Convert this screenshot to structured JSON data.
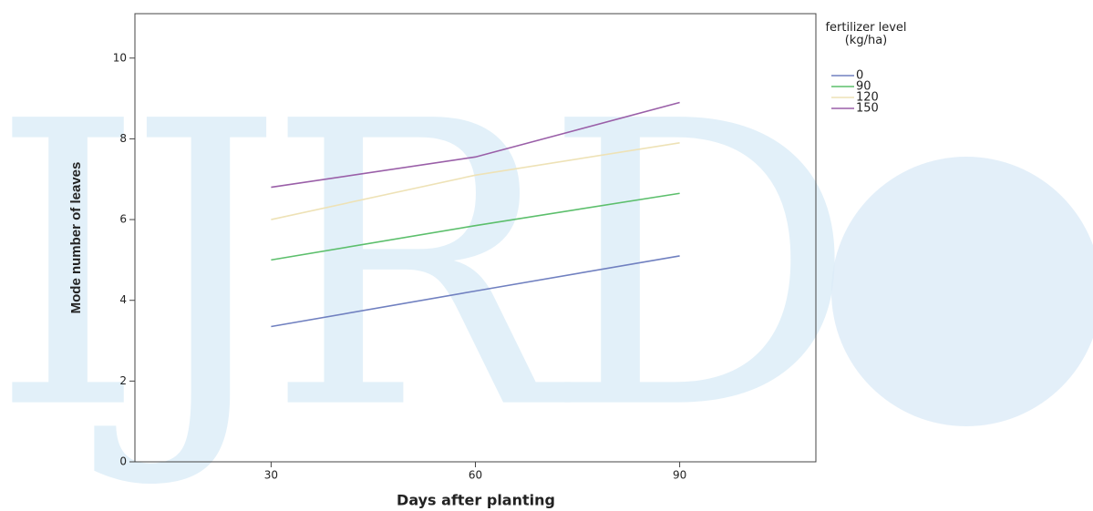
{
  "watermark": "IJRD",
  "chart_data": {
    "type": "line",
    "x_label": "Days after planting",
    "y_label": "Mode number of leaves",
    "legend_title": "fertilizer level (kg/ha)",
    "legend_position": "right",
    "x": [
      30,
      60,
      90
    ],
    "series": [
      {
        "name": "0",
        "color": "#7080c0",
        "values": [
          3.35,
          4.23,
          5.1
        ]
      },
      {
        "name": "90",
        "color": "#5cbf6c",
        "values": [
          5.0,
          5.85,
          6.65
        ]
      },
      {
        "name": "120",
        "color": "#eee2b6",
        "values": [
          6.0,
          7.1,
          7.9
        ]
      },
      {
        "name": "150",
        "color": "#9a5fa8",
        "values": [
          6.8,
          7.55,
          8.9
        ]
      }
    ],
    "xlim": [
      10,
      110
    ],
    "xticks": [
      30,
      60,
      90
    ],
    "ylim": [
      0,
      11.1
    ],
    "yticks": [
      0,
      2,
      4,
      6,
      8,
      10
    ],
    "grid": false
  }
}
